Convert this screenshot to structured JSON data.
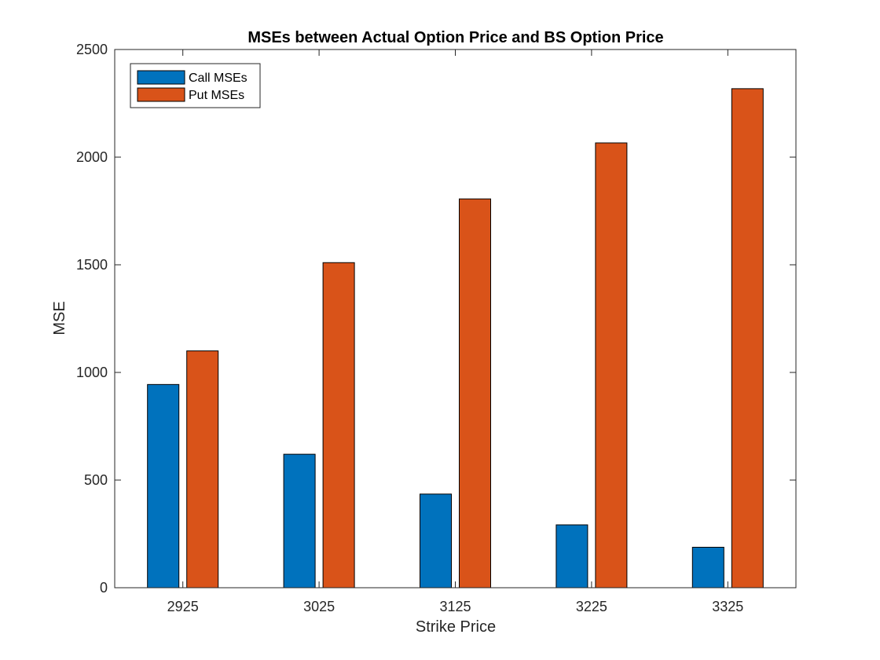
{
  "chart_data": {
    "type": "bar",
    "title": "MSEs between Actual Option Price and BS Option Price",
    "xlabel": "Strike Price",
    "ylabel": "MSE",
    "categories": [
      "2925",
      "3025",
      "3125",
      "3225",
      "3325"
    ],
    "series": [
      {
        "name": "Call MSEs",
        "color": "#0072bd",
        "values": [
          944,
          620,
          435,
          292,
          188
        ]
      },
      {
        "name": "Put MSEs",
        "color": "#d95319",
        "values": [
          1100,
          1510,
          1806,
          2066,
          2318
        ]
      }
    ],
    "ylim": [
      0,
      2500
    ],
    "yticks": [
      0,
      500,
      1000,
      1500,
      2000,
      2500
    ],
    "grid": false,
    "legend_position": "top-left"
  }
}
